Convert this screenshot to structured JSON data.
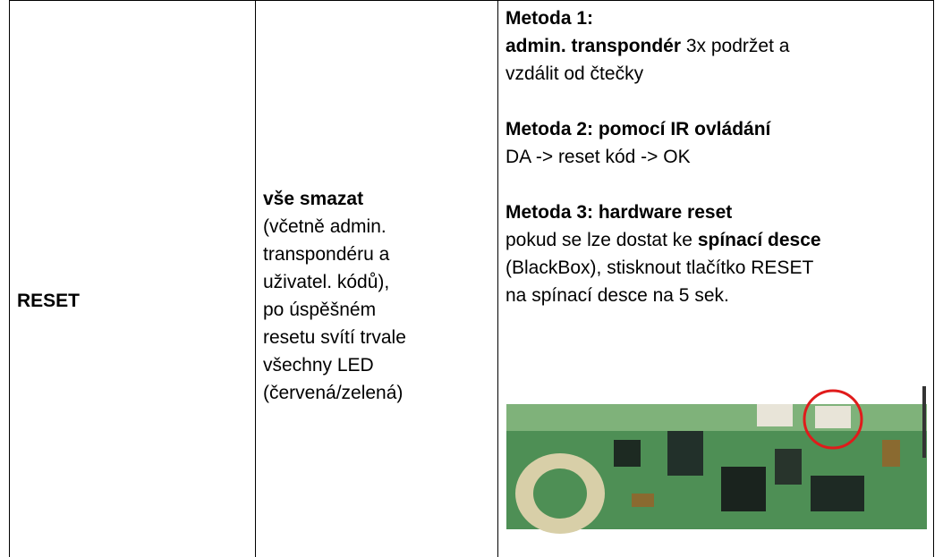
{
  "table": {
    "rows": [
      [
        [
          [
            [
              {
                "text": "RESET",
                "bold": true
              }
            ]
          ]
        ],
        [
          [
            [
              {
                "text": "vše smazat",
                "bold": true
              }
            ],
            [
              {
                "text": "(včetně admin."
              }
            ],
            [
              {
                "text": "transpondéru a"
              }
            ],
            [
              {
                "text": "uživatel. kódů),"
              }
            ],
            [
              {
                "text": "po úspěšném"
              }
            ],
            [
              {
                "text": "resetu svítí trvale"
              }
            ],
            [
              {
                "text": "všechny LED"
              }
            ],
            [
              {
                "text": "(červená/zelená)"
              }
            ]
          ]
        ],
        [
          [
            [
              {
                "text": "Metoda 1:",
                "bold": true
              }
            ],
            [
              {
                "text": "admin. transpondér",
                "bold": true
              },
              {
                "text": " 3x podržet a"
              }
            ],
            [
              {
                "text": "vzdálit od čtečky"
              }
            ]
          ],
          [
            [
              {
                "text": "Metoda 2: pomocí IR ovládání",
                "bold": true
              }
            ],
            [
              {
                "text": "DA -> reset kód -> OK"
              }
            ]
          ],
          [
            [
              {
                "text": "Metoda 3: hardware reset",
                "bold": true
              }
            ],
            [
              {
                "text": "pokud se lze dostat ke "
              },
              {
                "text": "spínací desce",
                "bold": true
              }
            ],
            [
              {
                "text": "(BlackBox), stisknout tlačítko RESET"
              }
            ],
            [
              {
                "text": "na spínací desce na 5 sek."
              }
            ]
          ]
        ]
      ]
    ]
  }
}
